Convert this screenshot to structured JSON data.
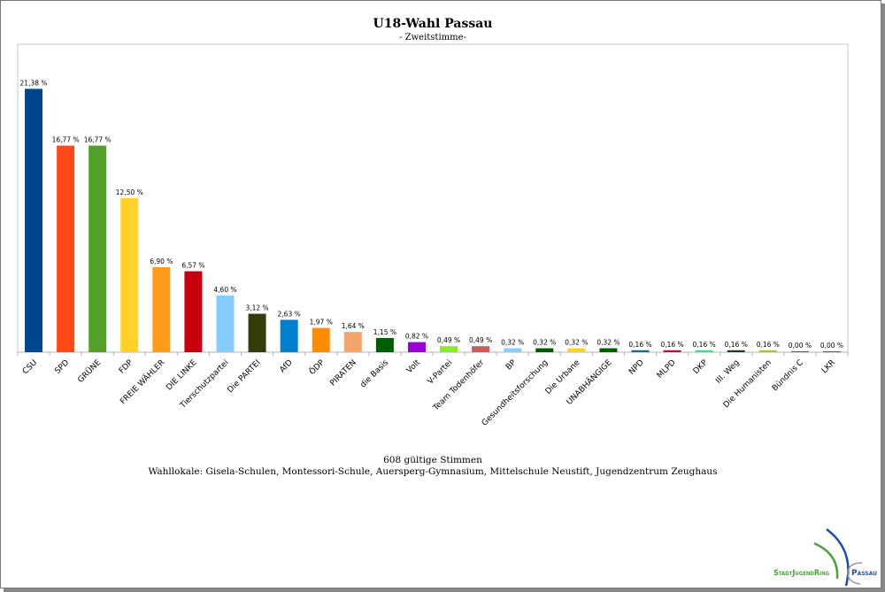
{
  "chart_data": {
    "type": "bar",
    "title": "U18-Wahl Passau",
    "subtitle": "- Zweitstimme-",
    "xlabel": "",
    "ylabel": "",
    "ylim": [
      0,
      25
    ],
    "grid": false,
    "categories": [
      "CSU",
      "SPD",
      "GRÜNE",
      "FDP",
      "FREIE WÄHLER",
      "DIE LINKE",
      "Tierschutzpartei",
      "Die PARTEI",
      "AfD",
      "ÖDP",
      "PIRATEN",
      "die Basis",
      "Volt",
      "V-Partei",
      "Team Todenhöfer",
      "BP",
      "Gesundheitsforschung",
      "Die Urbane",
      "UNABHÄNGIGE",
      "NPD",
      "MLPD",
      "DKP",
      "III. Weg",
      "Die Humanisten",
      "Bündnis C",
      "LKR"
    ],
    "values": [
      21.38,
      16.77,
      16.77,
      12.5,
      6.9,
      6.57,
      4.6,
      3.12,
      2.63,
      1.97,
      1.64,
      1.15,
      0.82,
      0.49,
      0.49,
      0.32,
      0.32,
      0.32,
      0.32,
      0.16,
      0.16,
      0.16,
      0.16,
      0.16,
      0.0,
      0.0
    ],
    "data_labels": [
      "21,38 %",
      "16,77 %",
      "16,77 %",
      "12,50 %",
      "6,90 %",
      "6,57 %",
      "4,60 %",
      "3,12 %",
      "2,63 %",
      "1,97 %",
      "1,64 %",
      "1,15 %",
      "0,82 %",
      "0,49 %",
      "0,49 %",
      "0,32 %",
      "0,32 %",
      "0,32 %",
      "0,32 %",
      "0,16 %",
      "0,16 %",
      "0,16 %",
      "0,16 %",
      "0,16 %",
      "0,00 %",
      "0,00 %"
    ],
    "colors": [
      "#00468c",
      "#ff4a17",
      "#52a02a",
      "#ffd12a",
      "#ff9a1a",
      "#c8000e",
      "#86ccff",
      "#313e09",
      "#0080d0",
      "#ff8c00",
      "#f4a46a",
      "#005c00",
      "#9a00d6",
      "#88ee22",
      "#cc5a5a",
      "#8ecdf7",
      "#005a00",
      "#ffd21e",
      "#005c00",
      "#1c6a7c",
      "#b4133c",
      "#3ddc8c",
      "#0b4a14",
      "#a4c43a",
      "#2a7a2a",
      "#2a7a2a"
    ],
    "footnotes": [
      "608 gültige Stimmen",
      "Wahllokale: Gisela-Schulen, Montessori-Schule, Auersperg-Gymnasium, Mittelschule Neustift, Jugendzentrum Zeughaus"
    ]
  },
  "logo": {
    "text_left": "StadtJugendRing",
    "text_right": "Passau"
  }
}
